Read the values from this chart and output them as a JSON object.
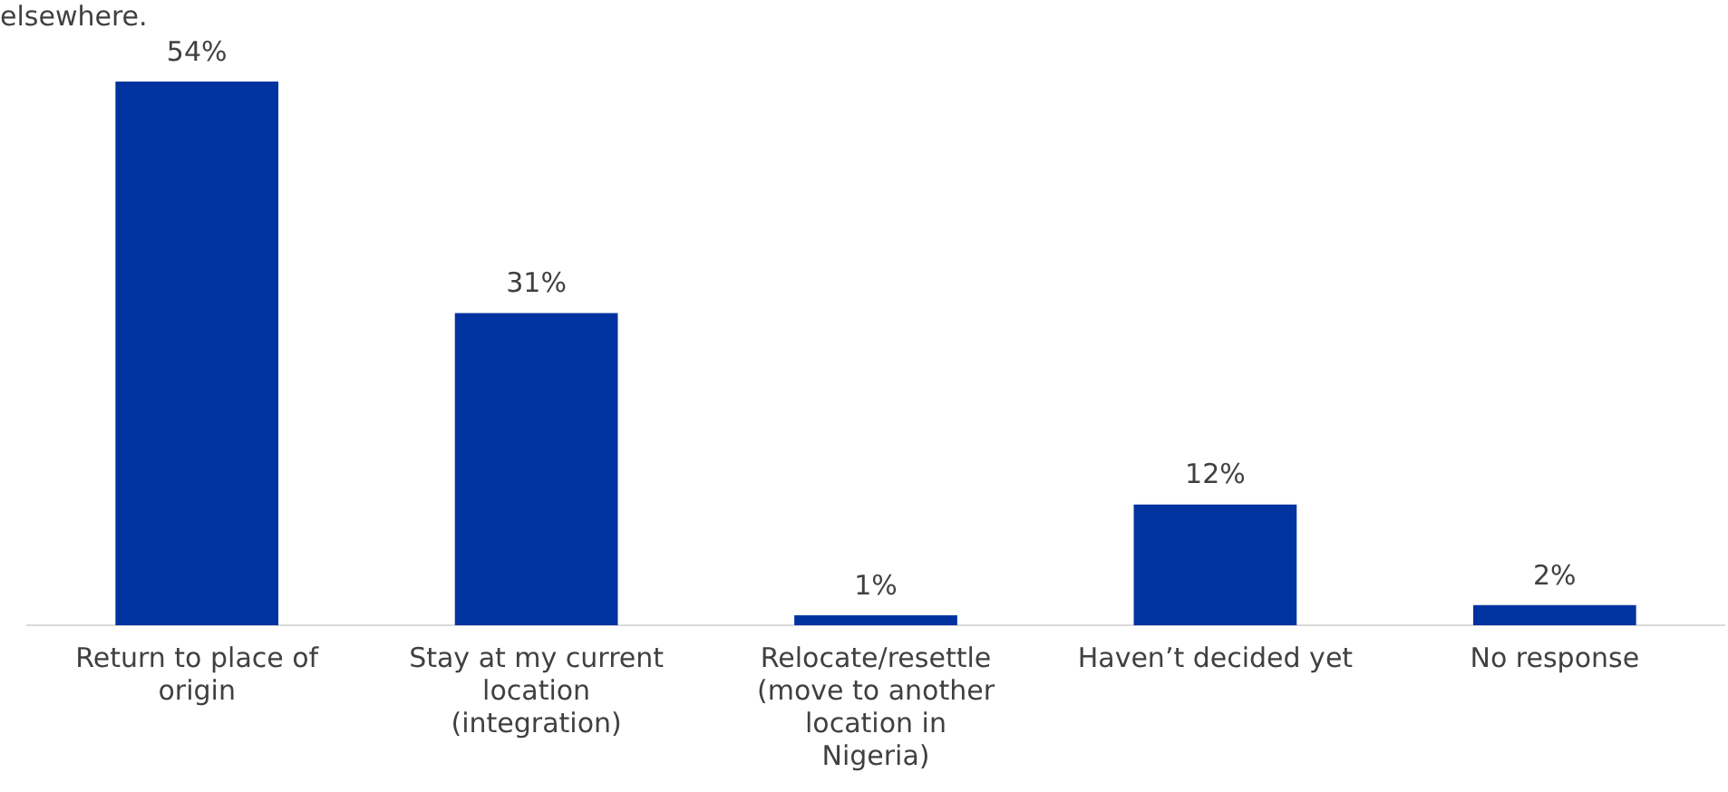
{
  "chart_data": {
    "type": "bar",
    "title": "elsewhere.",
    "categories": [
      "Return to place of origin",
      "Stay at my current location (integration)",
      "Relocate/resettle (move to another location in Nigeria)",
      "Haven’t decided yet",
      "No response"
    ],
    "values": [
      54,
      31,
      1,
      12,
      2
    ],
    "color": "#0033a0",
    "value_labels": [
      "54%",
      "31%",
      "1%",
      "12%",
      "2%"
    ],
    "ylim": [
      0,
      54
    ],
    "grid": false,
    "legend": false
  }
}
